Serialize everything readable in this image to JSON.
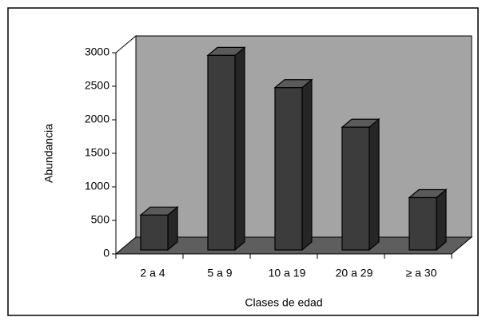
{
  "chart_data": {
    "type": "bar3d",
    "y_label": "Abundancia",
    "x_label": "Clases de edad",
    "categories": [
      "2 a 4",
      "5 a 9",
      "10 a 19",
      "20 a 29",
      "≥ a 30"
    ],
    "values": [
      520,
      2900,
      2420,
      1830,
      780
    ],
    "color": "#3c3c3c",
    "ylim": [
      0,
      3000
    ],
    "yticks": [
      0,
      500,
      1000,
      1500,
      2000,
      2500,
      3000
    ]
  }
}
